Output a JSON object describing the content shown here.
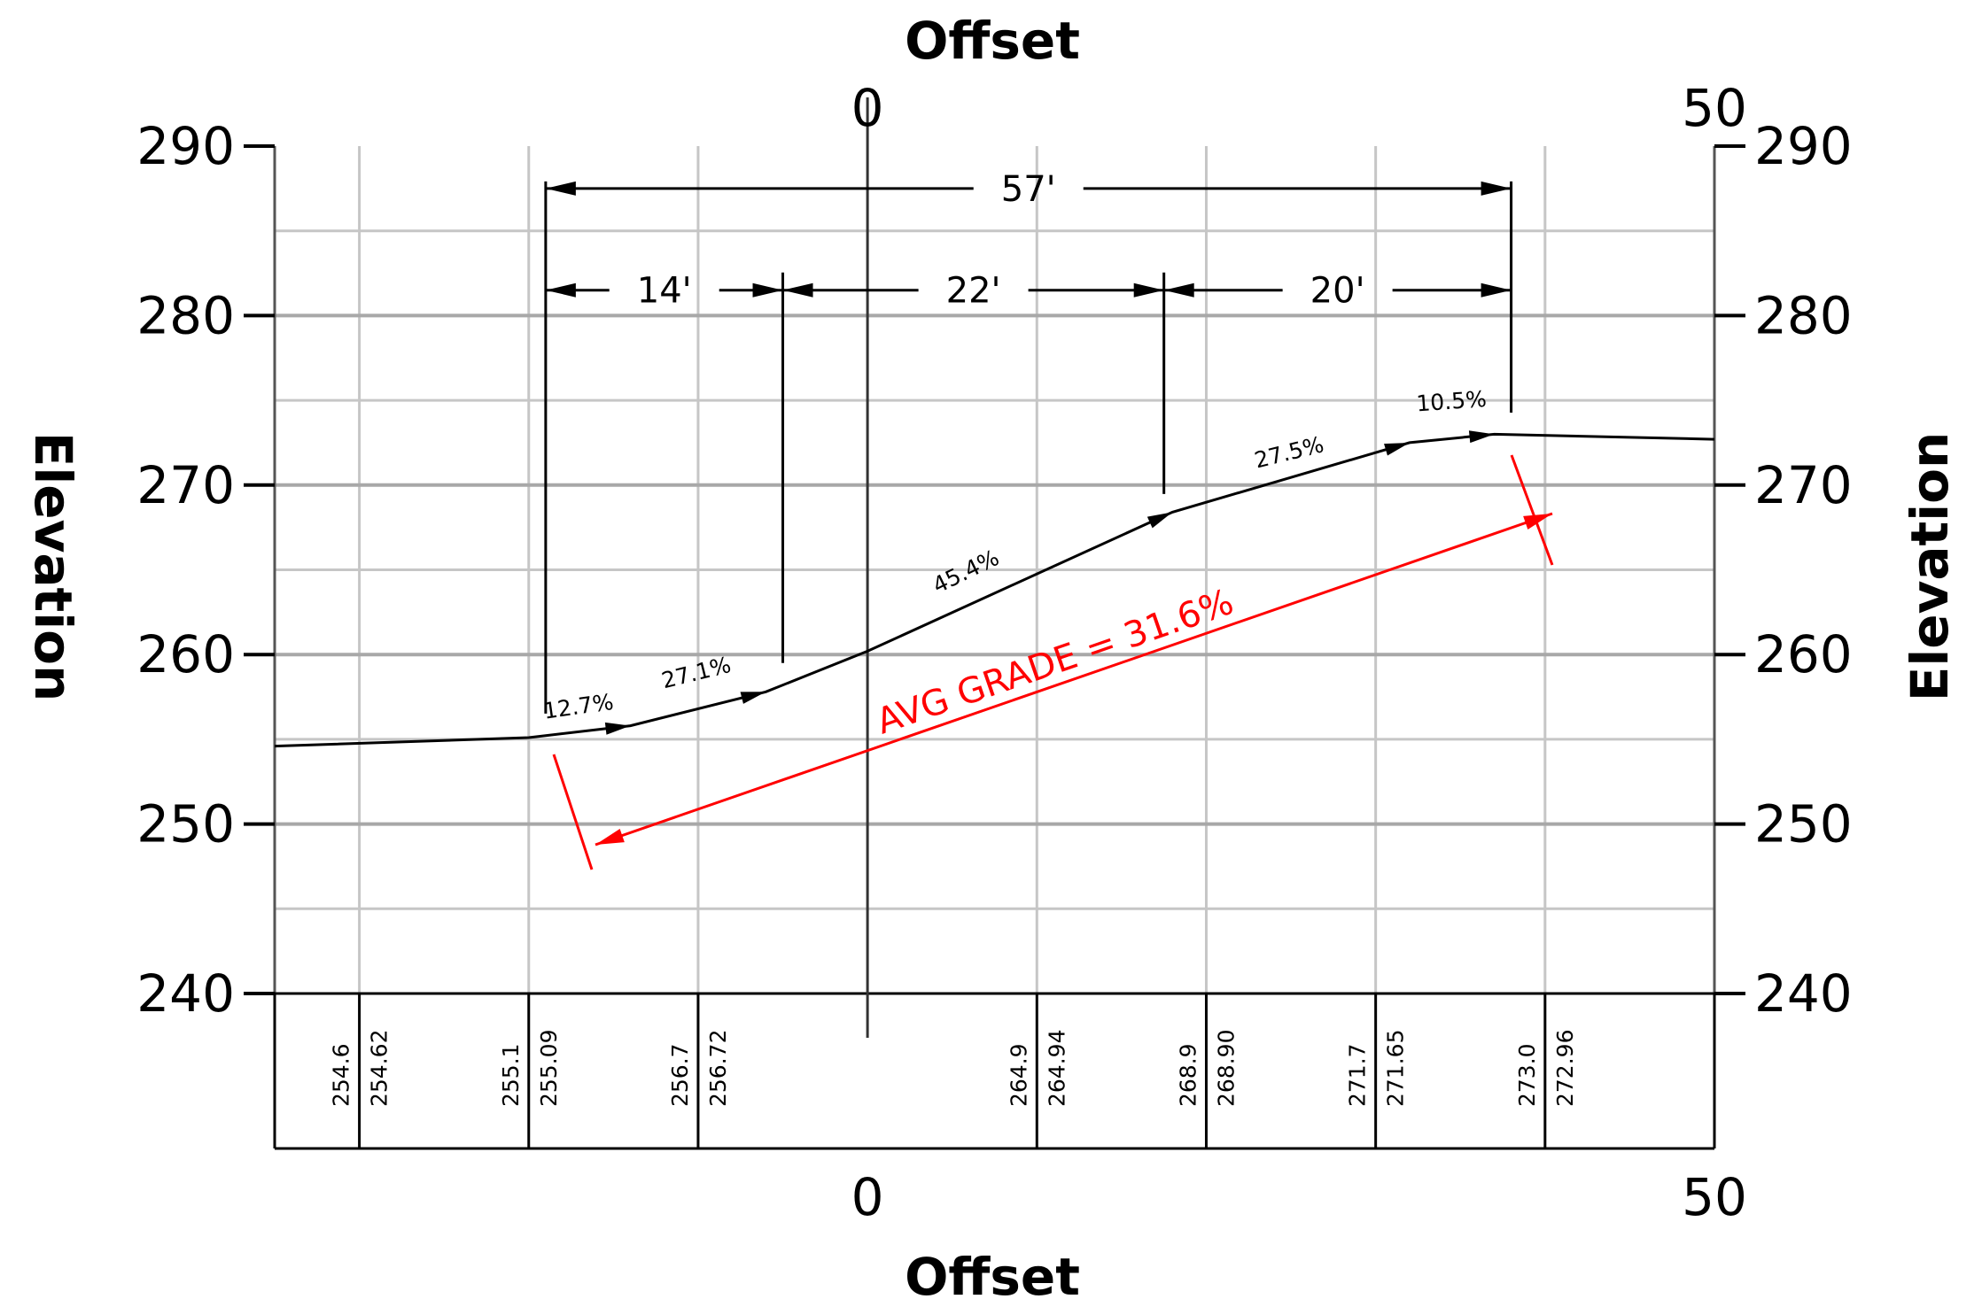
{
  "chart_data": {
    "type": "line",
    "title": "",
    "xlabel_top": "Offset",
    "xlabel_bottom": "Offset",
    "ylabel_left": "Elevation",
    "ylabel_right": "Elevation",
    "xlim": [
      -35,
      50
    ],
    "ylim": [
      240,
      290
    ],
    "x_ticks": [
      0,
      50
    ],
    "y_ticks": [
      240,
      250,
      260,
      270,
      280,
      290
    ],
    "grid": true,
    "series": [
      {
        "values": [
          {
            "x": -35,
            "y": 254.6
          },
          {
            "x": -20,
            "y": 255.1
          },
          {
            "x": -14,
            "y": 255.8
          },
          {
            "x": -6,
            "y": 257.8
          },
          {
            "x": 0,
            "y": 260.2
          },
          {
            "x": 18,
            "y": 268.4
          },
          {
            "x": 32,
            "y": 272.5
          },
          {
            "x": 37,
            "y": 273.0
          },
          {
            "x": 50,
            "y": 272.7
          }
        ]
      }
    ],
    "grade_labels": [
      {
        "text": "12.7%",
        "x": -17,
        "y": 256.5
      },
      {
        "text": "27.1%",
        "x": -10,
        "y": 258.5
      },
      {
        "text": "45.4%",
        "x": 6,
        "y": 264.5
      },
      {
        "text": "27.5%",
        "x": 25,
        "y": 271.5
      },
      {
        "text": "10.5%",
        "x": 34.5,
        "y": 274.5
      }
    ],
    "dimensions": [
      {
        "label": "57'",
        "from": -19,
        "to": 38,
        "y": 287.5
      },
      {
        "label": "14'",
        "from": -19,
        "to": -5,
        "y": 281.5
      },
      {
        "label": "22'",
        "from": -5,
        "to": 17.5,
        "y": 281.5
      },
      {
        "label": "20'",
        "from": 17.5,
        "to": 38,
        "y": 281.5
      }
    ],
    "avg_grade": {
      "text": "AVG GRADE = 31.6%",
      "color": "#ff0000"
    },
    "elevation_band": {
      "columns": [
        {
          "existing": "254.6",
          "design": "254.62"
        },
        {
          "existing": "255.1",
          "design": "255.09"
        },
        {
          "existing": "256.7",
          "design": "256.72"
        },
        {
          "existing": "",
          "design": ""
        },
        {
          "existing": "264.9",
          "design": "264.94"
        },
        {
          "existing": "268.9",
          "design": "268.90"
        },
        {
          "existing": "271.7",
          "design": "271.65"
        },
        {
          "existing": "273.0",
          "design": "272.96"
        },
        {
          "existing": "",
          "design": ""
        }
      ]
    }
  }
}
